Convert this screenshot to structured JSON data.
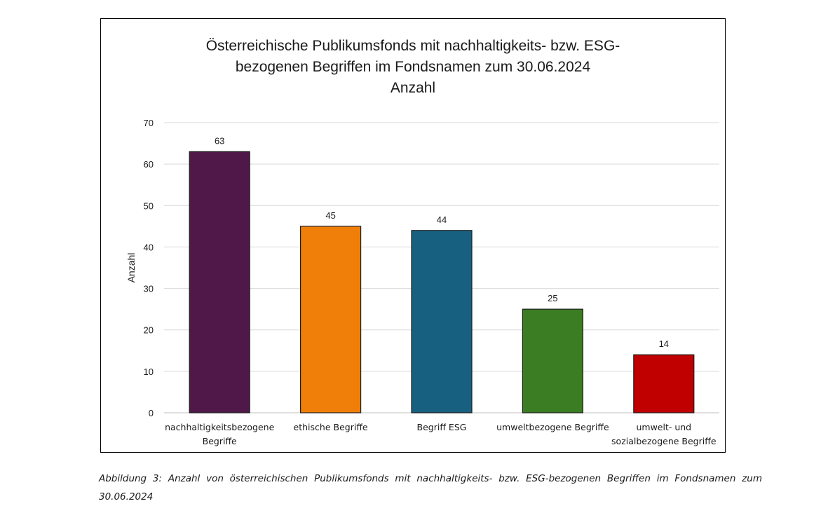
{
  "chart_data": {
    "type": "bar",
    "title": [
      "Österreichische Publikumsfonds mit nachhaltigkeits- bzw. ESG-",
      "bezogenen Begriffen im Fondsnamen zum 30.06.2024",
      "Anzahl"
    ],
    "ylabel": "Anzahl",
    "xlabel": "",
    "ylim": [
      0,
      70
    ],
    "yticks": [
      0,
      10,
      20,
      30,
      40,
      50,
      60,
      70
    ],
    "grid": true,
    "categories": [
      [
        "nachhaltigkeitsbezogene",
        "Begriffe"
      ],
      [
        "ethische Begriffe"
      ],
      [
        "Begriff ESG"
      ],
      [
        "umweltbezogene Begriffe"
      ],
      [
        "umwelt- und",
        "sozialbezogene Begriffe"
      ]
    ],
    "values": [
      63,
      45,
      44,
      25,
      14
    ],
    "colors": [
      "#4f1848",
      "#f07f09",
      "#18607f",
      "#3a7d22",
      "#c00000"
    ]
  },
  "caption": "Abbildung 3: Anzahl von österreichischen Publikumsfonds mit nachhaltigkeits- bzw. ESG-bezogenen Begriffen im Fondsnamen zum 30.06.2024"
}
